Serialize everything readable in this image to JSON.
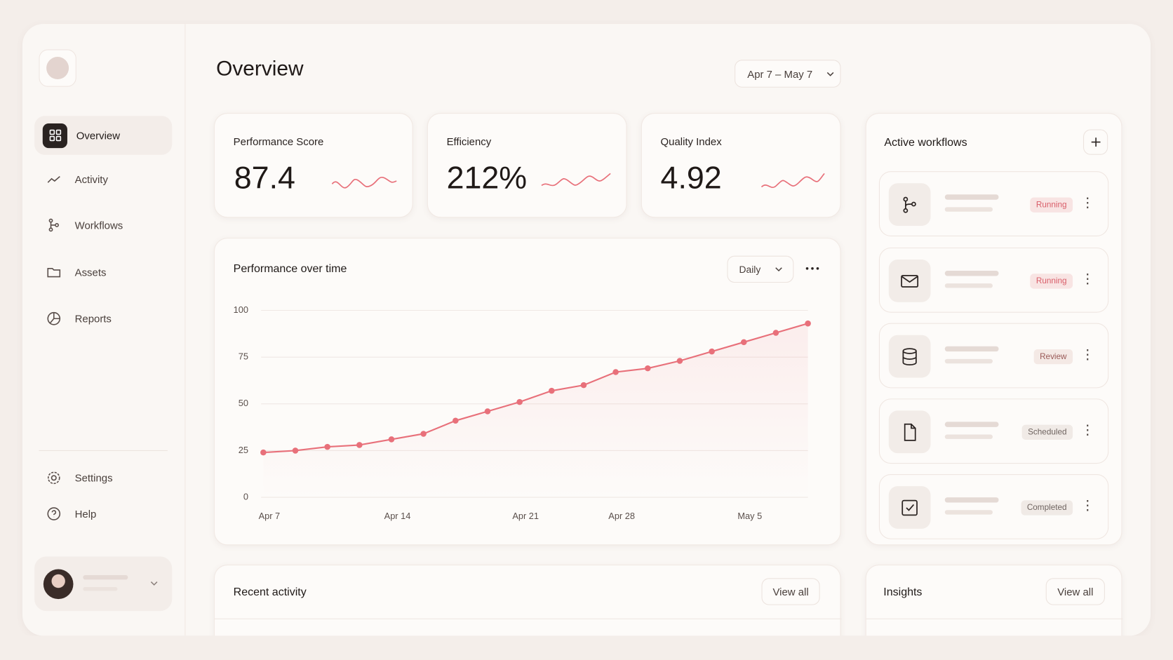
{
  "sidebar": {
    "nav": [
      "Overview",
      "Activity",
      "Workflows",
      "Assets",
      "Reports"
    ],
    "footer": [
      "Settings",
      "Help"
    ]
  },
  "header": {
    "title": "Overview",
    "date_range": "Apr 7 – May 7"
  },
  "kpis": [
    {
      "label": "Performance Score",
      "value": "87.4"
    },
    {
      "label": "Efficiency",
      "value": "212%"
    },
    {
      "label": "Quality Index",
      "value": "4.92"
    }
  ],
  "chart_data": {
    "type": "line",
    "title": "Performance over time",
    "period": "Daily",
    "categories": [
      "Apr 7",
      null,
      null,
      null,
      "Apr 14",
      null,
      null,
      null,
      "Apr 21",
      null,
      null,
      "Apr 28",
      null,
      null,
      null,
      "May 5",
      null,
      null
    ],
    "values": [
      24,
      25,
      27,
      28,
      31,
      34,
      41,
      46,
      51,
      57,
      60,
      67,
      69,
      73,
      78,
      83,
      88,
      93
    ],
    "color": "#e8707a",
    "ylim": [
      0,
      100
    ],
    "yticks": [
      0,
      25,
      50,
      75,
      100
    ],
    "grid": true
  },
  "workflows": {
    "title": "Active workflows",
    "items": [
      {
        "status": "Running"
      },
      {
        "status": "Running"
      },
      {
        "status": "Review"
      },
      {
        "status": "Scheduled"
      },
      {
        "status": "Completed"
      }
    ]
  },
  "recent_activity": {
    "title": "Recent activity",
    "action": "View all"
  },
  "insights": {
    "title": "Insights",
    "action": "View all"
  }
}
